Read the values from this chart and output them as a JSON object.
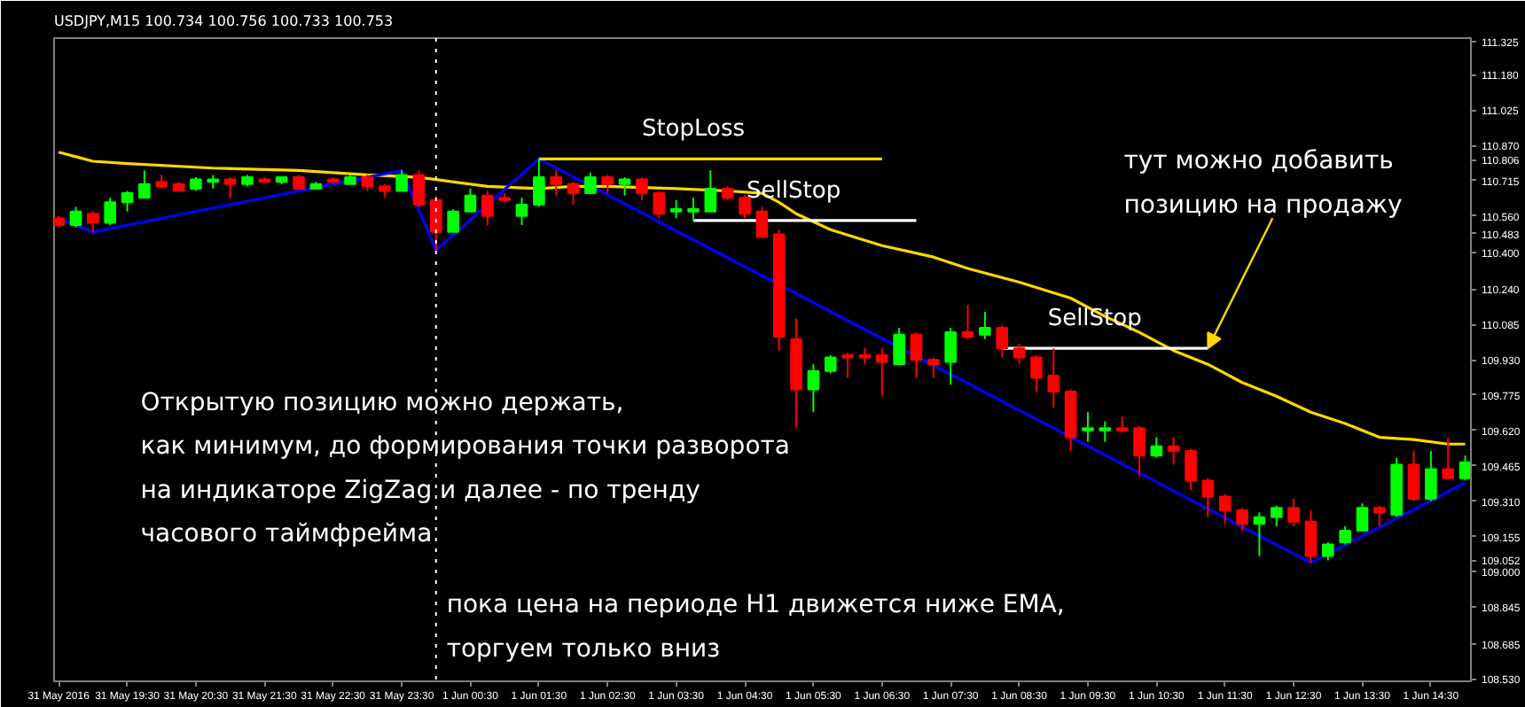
{
  "chart_data": {
    "type": "candlestick",
    "title": "USDJPY,M15  100.734 100.756 100.733 100.753",
    "x": [
      "2016-05-31T18:30",
      "2016-05-31T18:45",
      "2016-05-31T19:00",
      "2016-05-31T19:15",
      "2016-05-31T19:30",
      "2016-05-31T19:45",
      "2016-05-31T20:00",
      "2016-05-31T20:15",
      "2016-05-31T20:30",
      "2016-05-31T20:45",
      "2016-05-31T21:00",
      "2016-05-31T21:15",
      "2016-05-31T21:30",
      "2016-05-31T21:45",
      "2016-05-31T22:00",
      "2016-05-31T22:15",
      "2016-05-31T22:30",
      "2016-05-31T22:45",
      "2016-05-31T23:00",
      "2016-05-31T23:15",
      "2016-05-31T23:30",
      "2016-05-31T23:45",
      "2016-06-01T00:00",
      "2016-06-01T00:15",
      "2016-06-01T00:30",
      "2016-06-01T00:45",
      "2016-06-01T01:00",
      "2016-06-01T01:15",
      "2016-06-01T01:30",
      "2016-06-01T01:45",
      "2016-06-01T02:00",
      "2016-06-01T02:15",
      "2016-06-01T02:30",
      "2016-06-01T02:45",
      "2016-06-01T03:00",
      "2016-06-01T03:15",
      "2016-06-01T03:30",
      "2016-06-01T03:45",
      "2016-06-01T04:00",
      "2016-06-01T04:15",
      "2016-06-01T04:30",
      "2016-06-01T04:45",
      "2016-06-01T05:00",
      "2016-06-01T05:15",
      "2016-06-01T05:30",
      "2016-06-01T05:45",
      "2016-06-01T06:00",
      "2016-06-01T06:15",
      "2016-06-01T06:30",
      "2016-06-01T06:45",
      "2016-06-01T07:00",
      "2016-06-01T07:15",
      "2016-06-01T07:30",
      "2016-06-01T07:45",
      "2016-06-01T08:00",
      "2016-06-01T08:15",
      "2016-06-01T08:30",
      "2016-06-01T08:45",
      "2016-06-01T09:00",
      "2016-06-01T09:15",
      "2016-06-01T09:30",
      "2016-06-01T09:45",
      "2016-06-01T10:00",
      "2016-06-01T10:15",
      "2016-06-01T10:30",
      "2016-06-01T10:45",
      "2016-06-01T11:00",
      "2016-06-01T11:15",
      "2016-06-01T11:30",
      "2016-06-01T11:45",
      "2016-06-01T12:00",
      "2016-06-01T12:15",
      "2016-06-01T12:30",
      "2016-06-01T12:45",
      "2016-06-01T13:00",
      "2016-06-01T13:15",
      "2016-06-01T13:30",
      "2016-06-01T13:45",
      "2016-06-01T14:00",
      "2016-06-01T14:15",
      "2016-06-01T14:30",
      "2016-06-01T14:45",
      "2016-06-01T15:00"
    ],
    "ohlc": [
      [
        110.55,
        110.56,
        110.51,
        110.52
      ],
      [
        110.52,
        110.6,
        110.51,
        110.58
      ],
      [
        110.57,
        110.58,
        110.49,
        110.53
      ],
      [
        110.53,
        110.64,
        110.52,
        110.62
      ],
      [
        110.62,
        110.67,
        110.58,
        110.66
      ],
      [
        110.64,
        110.76,
        110.64,
        110.7
      ],
      [
        110.71,
        110.74,
        110.68,
        110.69
      ],
      [
        110.7,
        110.71,
        110.67,
        110.67
      ],
      [
        110.68,
        110.73,
        110.67,
        110.72
      ],
      [
        110.71,
        110.74,
        110.68,
        110.72
      ],
      [
        110.72,
        110.73,
        110.64,
        110.7
      ],
      [
        110.7,
        110.74,
        110.69,
        110.73
      ],
      [
        110.72,
        110.73,
        110.71,
        110.71
      ],
      [
        110.71,
        110.73,
        110.7,
        110.73
      ],
      [
        110.73,
        110.74,
        110.68,
        110.68
      ],
      [
        110.68,
        110.71,
        110.68,
        110.7
      ],
      [
        110.72,
        110.73,
        110.7,
        110.71
      ],
      [
        110.7,
        110.74,
        110.7,
        110.73
      ],
      [
        110.73,
        110.74,
        110.67,
        110.69
      ],
      [
        110.69,
        110.7,
        110.64,
        110.67
      ],
      [
        110.67,
        110.76,
        110.67,
        110.74
      ],
      [
        110.74,
        110.76,
        110.6,
        110.61
      ],
      [
        110.63,
        110.65,
        110.41,
        110.49
      ],
      [
        110.49,
        110.59,
        110.49,
        110.58
      ],
      [
        110.58,
        110.68,
        110.58,
        110.65
      ],
      [
        110.65,
        110.67,
        110.52,
        110.56
      ],
      [
        110.64,
        110.66,
        110.62,
        110.63
      ],
      [
        110.56,
        110.64,
        110.52,
        110.61
      ],
      [
        110.61,
        110.81,
        110.6,
        110.73
      ],
      [
        110.73,
        110.76,
        110.65,
        110.7
      ],
      [
        110.7,
        110.71,
        110.61,
        110.66
      ],
      [
        110.66,
        110.75,
        110.66,
        110.73
      ],
      [
        110.73,
        110.74,
        110.66,
        110.7
      ],
      [
        110.7,
        110.73,
        110.65,
        110.72
      ],
      [
        110.72,
        110.73,
        110.63,
        110.66
      ],
      [
        110.66,
        110.67,
        110.55,
        110.57
      ],
      [
        110.58,
        110.63,
        110.55,
        110.59
      ],
      [
        110.58,
        110.64,
        110.54,
        110.59
      ],
      [
        110.58,
        110.76,
        110.58,
        110.68
      ],
      [
        110.68,
        110.69,
        110.63,
        110.64
      ],
      [
        110.64,
        110.65,
        110.55,
        110.57
      ],
      [
        110.58,
        110.6,
        110.46,
        110.47
      ],
      [
        110.48,
        110.5,
        109.97,
        110.03
      ],
      [
        110.02,
        110.11,
        109.63,
        109.8
      ],
      [
        109.8,
        109.91,
        109.7,
        109.88
      ],
      [
        109.88,
        109.95,
        109.87,
        109.94
      ],
      [
        109.95,
        109.96,
        109.85,
        109.94
      ],
      [
        109.95,
        109.98,
        109.91,
        109.94
      ],
      [
        109.95,
        109.98,
        109.77,
        109.92
      ],
      [
        109.91,
        110.07,
        109.91,
        110.04
      ],
      [
        110.04,
        110.05,
        109.85,
        109.93
      ],
      [
        109.93,
        109.94,
        109.85,
        109.91
      ],
      [
        109.92,
        110.07,
        109.82,
        110.05
      ],
      [
        110.05,
        110.17,
        110.02,
        110.03
      ],
      [
        110.04,
        110.14,
        110.02,
        110.07
      ],
      [
        110.07,
        110.08,
        109.94,
        109.98
      ],
      [
        109.98,
        110.0,
        109.91,
        109.94
      ],
      [
        109.94,
        109.95,
        109.79,
        109.85
      ],
      [
        109.86,
        109.98,
        109.72,
        109.79
      ],
      [
        109.79,
        109.8,
        109.53,
        109.59
      ],
      [
        109.62,
        109.7,
        109.57,
        109.63
      ],
      [
        109.62,
        109.66,
        109.57,
        109.63
      ],
      [
        109.63,
        109.68,
        109.61,
        109.62
      ],
      [
        109.63,
        109.64,
        109.42,
        109.51
      ],
      [
        109.51,
        109.59,
        109.5,
        109.55
      ],
      [
        109.55,
        109.59,
        109.47,
        109.53
      ],
      [
        109.53,
        109.54,
        109.36,
        109.4
      ],
      [
        109.4,
        109.41,
        109.24,
        109.33
      ],
      [
        109.33,
        109.34,
        109.21,
        109.27
      ],
      [
        109.27,
        109.28,
        109.18,
        109.21
      ],
      [
        109.21,
        109.26,
        109.07,
        109.24
      ],
      [
        109.24,
        109.29,
        109.2,
        109.28
      ],
      [
        109.28,
        109.32,
        109.2,
        109.22
      ],
      [
        109.22,
        109.27,
        109.04,
        109.07
      ],
      [
        109.07,
        109.13,
        109.05,
        109.12
      ],
      [
        109.13,
        109.2,
        109.12,
        109.18
      ],
      [
        109.18,
        109.3,
        109.18,
        109.28
      ],
      [
        109.28,
        109.29,
        109.2,
        109.26
      ],
      [
        109.25,
        109.5,
        109.24,
        109.47
      ],
      [
        109.47,
        109.53,
        109.31,
        109.32
      ],
      [
        109.32,
        109.53,
        109.31,
        109.45
      ],
      [
        109.45,
        109.59,
        109.41,
        109.41
      ],
      [
        109.41,
        109.51,
        109.4,
        109.48
      ]
    ],
    "colors": [
      "#ff0000",
      "#00ff00",
      "#ff0000",
      "#00ff00",
      "#00ff00",
      "#00ff00",
      "#ff0000",
      "#ff0000",
      "#00ff00",
      "#00ff00",
      "#ff0000",
      "#00ff00",
      "#ff0000",
      "#00ff00",
      "#ff0000",
      "#00ff00",
      "#ff0000",
      "#00ff00",
      "#ff0000",
      "#ff0000",
      "#00ff00",
      "#ff0000",
      "#ff0000",
      "#00ff00",
      "#00ff00",
      "#ff0000",
      "#ff0000",
      "#00ff00",
      "#00ff00",
      "#ff0000",
      "#ff0000",
      "#00ff00",
      "#ff0000",
      "#00ff00",
      "#ff0000",
      "#ff0000",
      "#00ff00",
      "#00ff00",
      "#00ff00",
      "#ff0000",
      "#ff0000",
      "#ff0000",
      "#ff0000",
      "#ff0000",
      "#00ff00",
      "#00ff00",
      "#ff0000",
      "#ff0000",
      "#ff0000",
      "#00ff00",
      "#ff0000",
      "#ff0000",
      "#00ff00",
      "#ff0000",
      "#00ff00",
      "#ff0000",
      "#ff0000",
      "#ff0000",
      "#ff0000",
      "#ff0000",
      "#00ff00",
      "#00ff00",
      "#ff0000",
      "#ff0000",
      "#00ff00",
      "#ff0000",
      "#ff0000",
      "#ff0000",
      "#ff0000",
      "#ff0000",
      "#00ff00",
      "#00ff00",
      "#ff0000",
      "#ff0000",
      "#00ff00",
      "#00ff00",
      "#00ff00",
      "#ff0000",
      "#00ff00",
      "#ff0000",
      "#00ff00",
      "#ff0000",
      "#00ff00"
    ],
    "series": [
      {
        "type": "line",
        "color": "#ffd700",
        "x": [
          "2016-05-31T18:30",
          "2016-05-31T18:45",
          "2016-05-31T19:00",
          "2016-05-31T19:30",
          "2016-05-31T20:45",
          "2016-05-31T22:00",
          "2016-05-31T23:00",
          "2016-05-31T23:45",
          "2016-06-01T00:00",
          "2016-06-01T00:45",
          "2016-06-01T01:30",
          "2016-06-01T02:00",
          "2016-06-01T02:30",
          "2016-06-01T03:30",
          "2016-06-01T04:15",
          "2016-06-01T04:45",
          "2016-06-01T05:00",
          "2016-06-01T05:15",
          "2016-06-01T05:45",
          "2016-06-01T06:30",
          "2016-06-01T07:15",
          "2016-06-01T07:45",
          "2016-06-01T08:30",
          "2016-06-01T09:15",
          "2016-06-01T09:45",
          "2016-06-01T10:15",
          "2016-06-01T10:45",
          "2016-06-01T11:15",
          "2016-06-01T11:45",
          "2016-06-01T12:15",
          "2016-06-01T12:45",
          "2016-06-01T13:15",
          "2016-06-01T13:45",
          "2016-06-01T14:15",
          "2016-06-01T14:45",
          "2016-06-01T15:00"
        ],
        "values": [
          110.84,
          110.82,
          110.8,
          110.79,
          110.77,
          110.76,
          110.74,
          110.73,
          110.72,
          110.69,
          110.68,
          110.69,
          110.69,
          110.68,
          110.67,
          110.66,
          110.62,
          110.57,
          110.5,
          110.43,
          110.38,
          110.33,
          110.27,
          110.2,
          110.12,
          110.05,
          109.97,
          109.91,
          109.83,
          109.77,
          109.7,
          109.65,
          109.59,
          109.58,
          109.56,
          109.56
        ]
      },
      {
        "type": "line",
        "color": "#0000ff",
        "x": [
          "2016-05-31T18:30",
          "2016-05-31T19:00",
          "2016-05-31T23:30",
          "2016-06-01T00:00",
          "2016-06-01T01:30",
          "2016-06-01T12:45",
          "2016-06-01T15:00"
        ],
        "values": [
          110.55,
          110.49,
          110.76,
          110.41,
          110.81,
          109.04,
          109.39
        ]
      },
      {
        "type": "line",
        "name": "StopLoss",
        "color": "#ffd700",
        "x": [
          "2016-06-01T01:30",
          "2016-06-01T06:30"
        ],
        "values": [
          110.81,
          110.81
        ]
      },
      {
        "type": "line",
        "name": "SellStop",
        "color": "#ffffff",
        "x": [
          "2016-06-01T03:45",
          "2016-06-01T07:00"
        ],
        "values": [
          110.54,
          110.54
        ]
      },
      {
        "type": "line",
        "name": "SellStop",
        "color": "#ffffff",
        "x": [
          "2016-06-01T08:15",
          "2016-06-01T11:15"
        ],
        "values": [
          109.98,
          109.98
        ]
      }
    ],
    "ref_lines": [
      {
        "axis": "x",
        "value": "2016-06-01T00:00",
        "color": "#ffffff",
        "line_style": "dotted"
      }
    ],
    "annotations": [
      "Открытую позицию можно держать,\nкак минимум, до формирования точки разворота\nна индикаторе ZigZag и далее -  по тренду\nчасового таймфрейма",
      "пока цена на периоде H1 движется ниже EMA,\nторгуем только вниз",
      {
        "text": "тут можно добавить\nпозицию на продажу",
        "x": "2016-06-01T11:15",
        "y": 109.98
      }
    ],
    "xlim": [
      "2016-05-31T18:26",
      "2016-06-01T15:05"
    ],
    "xticks": [
      {
        "value": "2016-05-31T18:30",
        "label": "31 May 2016"
      },
      {
        "value": "2016-05-31T19:30",
        "label": "31 May 19:30"
      },
      {
        "value": "2016-05-31T20:30",
        "label": "31 May 20:30"
      },
      {
        "value": "2016-05-31T21:30",
        "label": "31 May 21:30"
      },
      {
        "value": "2016-05-31T22:30",
        "label": "31 May 22:30"
      },
      {
        "value": "2016-05-31T23:30",
        "label": "31 May 23:30"
      },
      {
        "value": "2016-06-01T00:30",
        "label": "1 Jun 00:30"
      },
      {
        "value": "2016-06-01T01:30",
        "label": "1 Jun 01:30"
      },
      {
        "value": "2016-06-01T02:30",
        "label": "1 Jun 02:30"
      },
      {
        "value": "2016-06-01T03:30",
        "label": "1 Jun 03:30"
      },
      {
        "value": "2016-06-01T04:30",
        "label": "1 Jun 04:30"
      },
      {
        "value": "2016-06-01T05:30",
        "label": "1 Jun 05:30"
      },
      {
        "value": "2016-06-01T06:30",
        "label": "1 Jun 06:30"
      },
      {
        "value": "2016-06-01T07:30",
        "label": "1 Jun 07:30"
      },
      {
        "value": "2016-06-01T08:30",
        "label": "1 Jun 08:30"
      },
      {
        "value": "2016-06-01T09:30",
        "label": "1 Jun 09:30"
      },
      {
        "value": "2016-06-01T10:30",
        "label": "1 Jun 10:30"
      },
      {
        "value": "2016-06-01T11:30",
        "label": "1 Jun 11:30"
      },
      {
        "value": "2016-06-01T12:30",
        "label": "1 Jun 12:30"
      },
      {
        "value": "2016-06-01T13:30",
        "label": "1 Jun 13:30"
      },
      {
        "value": "2016-06-01T14:30",
        "label": "1 Jun 14:30"
      }
    ],
    "ylim": [
      108.52,
      111.34
    ],
    "yticks": [
      111.325,
      {
        "value": 111.18,
        "label": "111.180"
      },
      111.025,
      {
        "value": 110.87,
        "label": "110.870"
      },
      110.806,
      110.715,
      {
        "value": 110.56,
        "label": "110.560"
      },
      110.483,
      {
        "value": 110.4,
        "label": "110.400"
      },
      {
        "value": 110.24,
        "label": "110.240"
      },
      110.085,
      {
        "value": 109.93,
        "label": "109.930"
      },
      109.775,
      {
        "value": 109.62,
        "label": "109.620"
      },
      109.465,
      {
        "value": 109.31,
        "label": "109.310"
      },
      109.155,
      109.052,
      {
        "value": 109.0,
        "label": "109.000"
      },
      108.845,
      108.685,
      {
        "value": 108.53,
        "label": "108.530"
      }
    ]
  }
}
